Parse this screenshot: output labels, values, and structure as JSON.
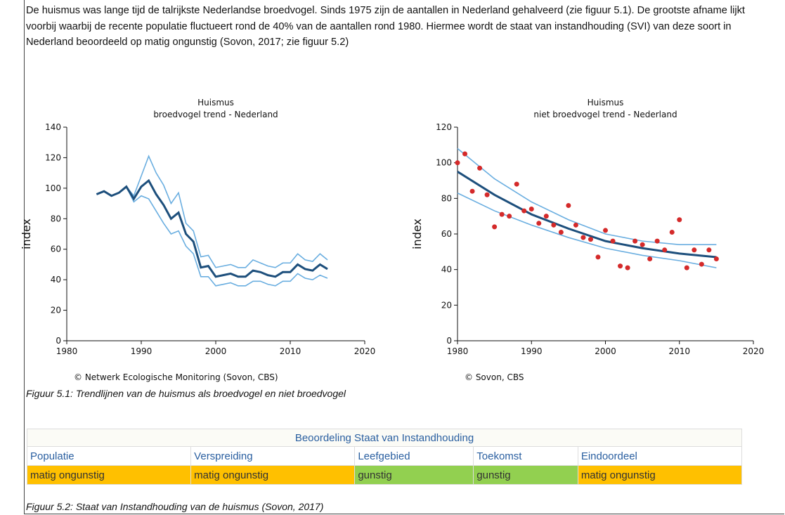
{
  "paragraph": "De huismus was lange tijd de talrijkste Nederlandse broedvogel. Sinds 1975 zijn de aantallen in Nederland gehalveerd (zie figuur 5.1). De grootste afname lijkt voorbij waarbij de recente populatie fluctueert rond de 40% van de aantallen rond 1980. Hiermee wordt de staat van instandhouding (SVI) van deze soort in Nederland beoordeeld op matig ongunstig (Sovon, 2017; zie figuur 5.2)",
  "chart_data": [
    {
      "type": "line",
      "title": "Huismus",
      "subtitle": "broedvogel trend - Nederland",
      "y_label": "index",
      "credit": "© Netwerk Ecologische Monitoring (Sovon, CBS)",
      "x": [
        1984,
        1985,
        1986,
        1987,
        1988,
        1989,
        1990,
        1991,
        1992,
        1993,
        1994,
        1995,
        1996,
        1997,
        1998,
        1999,
        2000,
        2001,
        2002,
        2003,
        2004,
        2005,
        2006,
        2007,
        2008,
        2009,
        2010,
        2011,
        2012,
        2013,
        2014,
        2015
      ],
      "series": [
        {
          "color": "#6aaee0",
          "values": [
            96,
            98,
            95,
            97,
            101,
            95,
            108,
            121,
            110,
            102,
            90,
            97,
            77,
            72,
            55,
            56,
            48,
            49,
            50,
            48,
            48,
            53,
            51,
            49,
            48,
            51,
            51,
            57,
            53,
            52,
            57,
            53
          ]
        },
        {
          "color": "#6aaee0",
          "values": [
            96,
            98,
            95,
            97,
            101,
            91,
            95,
            93,
            85,
            77,
            70,
            72,
            62,
            57,
            42,
            42,
            36,
            37,
            38,
            36,
            36,
            39,
            39,
            37,
            36,
            39,
            39,
            44,
            41,
            40,
            43,
            41
          ]
        },
        {
          "color": "#1d4f7c",
          "values": [
            96,
            98,
            95,
            97,
            101,
            93,
            101,
            105,
            96,
            89,
            80,
            84,
            70,
            65,
            48,
            49,
            42,
            43,
            44,
            42,
            42,
            46,
            45,
            43,
            42,
            45,
            45,
            50,
            47,
            46,
            50,
            47
          ]
        }
      ],
      "xlim": [
        1980,
        2020
      ],
      "xticks": [
        1980,
        1990,
        2000,
        2010,
        2020
      ],
      "ylim": [
        0,
        140
      ],
      "yticks": [
        0,
        20,
        40,
        60,
        80,
        100,
        120,
        140
      ]
    },
    {
      "type": "scatter",
      "title": "Huismus",
      "subtitle": "niet broedvogel trend - Nederland",
      "y_label": "index",
      "credit": "© Sovon, CBS",
      "series": [
        {
          "mode": "line",
          "color": "#6aaee0",
          "x": [
            1980,
            1985,
            1990,
            1995,
            2000,
            2005,
            2010,
            2015
          ],
          "values": [
            108,
            91,
            78,
            68,
            60,
            56,
            54,
            54
          ]
        },
        {
          "mode": "line",
          "color": "#6aaee0",
          "x": [
            1980,
            1985,
            1990,
            1995,
            2000,
            2005,
            2010,
            2015
          ],
          "values": [
            83,
            73,
            65,
            58,
            52,
            48,
            45,
            41
          ]
        },
        {
          "mode": "line",
          "color": "#1d4f7c",
          "x": [
            1980,
            1985,
            1990,
            1995,
            2000,
            2005,
            2010,
            2015
          ],
          "values": [
            95,
            82,
            71,
            63,
            56,
            52,
            49,
            47
          ]
        },
        {
          "mode": "markers",
          "color": "#d42a2a",
          "x": [
            1980,
            1981,
            1982,
            1983,
            1984,
            1985,
            1986,
            1987,
            1988,
            1989,
            1990,
            1991,
            1992,
            1993,
            1994,
            1995,
            1996,
            1997,
            1998,
            1999,
            2000,
            2001,
            2002,
            2003,
            2004,
            2005,
            2006,
            2007,
            2008,
            2009,
            2010,
            2011,
            2012,
            2013,
            2014,
            2015
          ],
          "values": [
            100,
            105,
            84,
            97,
            82,
            64,
            71,
            70,
            88,
            73,
            74,
            66,
            70,
            65,
            61,
            76,
            65,
            58,
            57,
            47,
            62,
            56,
            42,
            41,
            56,
            54,
            46,
            56,
            51,
            61,
            68,
            41,
            51,
            43,
            51,
            46
          ]
        }
      ],
      "xlim": [
        1980,
        2020
      ],
      "xticks": [
        1980,
        1990,
        2000,
        2010,
        2020
      ],
      "ylim": [
        0,
        120
      ],
      "yticks": [
        0,
        20,
        40,
        60,
        80,
        100,
        120
      ]
    }
  ],
  "caption1": "Figuur 5.1: Trendlijnen van de huismus als broedvogel en niet broedvogel",
  "table": {
    "title": "Beoordeling Staat van Instandhouding",
    "header": [
      "Populatie",
      "Verspreiding",
      "Leefgebied",
      "Toekomst",
      "Eindoordeel"
    ],
    "row": [
      "matig ongunstig",
      "matig ongunstig",
      "gunstig",
      "gunstig",
      "matig ongunstig"
    ]
  },
  "caption2": "Figuur 5.2: Staat van Instandhouding van de huismus (Sovon, 2017)"
}
